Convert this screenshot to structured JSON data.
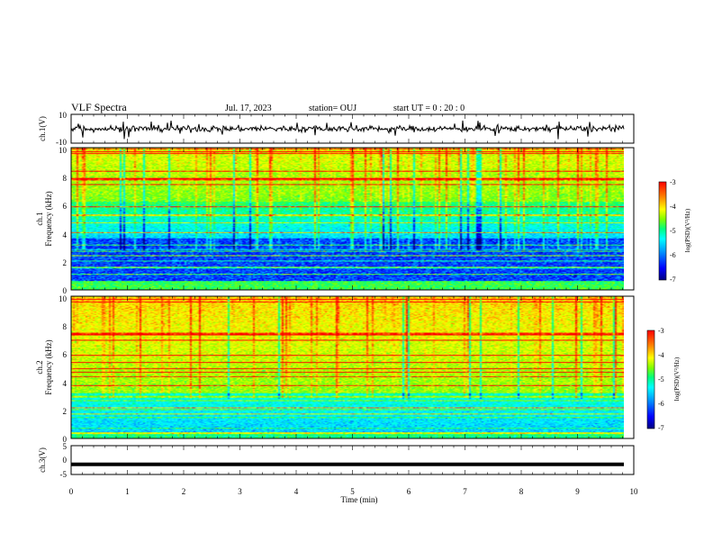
{
  "header": {
    "title": "VLF Spectra",
    "date": "Jul. 17, 2023",
    "station": "station= OUJ",
    "start": "start  UT =  0 : 20 : 0"
  },
  "chart_data": [
    {
      "type": "line",
      "panel": "ch1-waveform",
      "ylabel": "ch.1(V)",
      "ylim": [
        -10,
        10
      ],
      "y_ticks": [
        "10",
        "-10"
      ],
      "xlim": [
        0,
        10
      ],
      "baseline": 0,
      "color": "#000000"
    },
    {
      "type": "heatmap",
      "panel": "ch1-spectrogram",
      "ylabel": "Frequency (kHz)",
      "ylabel2": "ch.1",
      "ylim": [
        0,
        10
      ],
      "y_ticks": [
        "10",
        "8",
        "6",
        "4",
        "2",
        "0"
      ],
      "xlim": [
        0,
        9.8
      ],
      "colorbar": {
        "label": "log(PSD)(V²/Hz)",
        "range": [
          -7,
          -3
        ],
        "ticks": [
          "-3",
          "-4",
          "-5",
          "-6",
          "-7"
        ]
      }
    },
    {
      "type": "heatmap",
      "panel": "ch2-spectrogram",
      "ylabel": "Frequency (kHz)",
      "ylabel2": "ch.2",
      "ylim": [
        0,
        10
      ],
      "y_ticks": [
        "10",
        "8",
        "6",
        "4",
        "2",
        "0"
      ],
      "xlim": [
        0,
        9.8
      ],
      "colorbar": {
        "label": "log(PSD)(V²/Hz)",
        "range": [
          -7,
          -3
        ],
        "ticks": [
          "-3",
          "-4",
          "-5",
          "-6",
          "-7"
        ]
      }
    },
    {
      "type": "line",
      "panel": "ch3-waveform",
      "ylabel": "ch.3(V)",
      "ylim": [
        -5,
        5
      ],
      "y_ticks": [
        "5",
        "0",
        "-5"
      ],
      "xlim": [
        0,
        10
      ],
      "constant_value": -1.5,
      "color": "#000000"
    }
  ],
  "xaxis": {
    "label": "Time (min)",
    "ticks": [
      "0",
      "1",
      "2",
      "3",
      "4",
      "5",
      "6",
      "7",
      "8",
      "9",
      "10"
    ]
  },
  "colormap": [
    "#000080",
    "#0000ff",
    "#00a0ff",
    "#00ffff",
    "#00ff80",
    "#80ff00",
    "#ffff00",
    "#ff8000",
    "#ff0000"
  ]
}
